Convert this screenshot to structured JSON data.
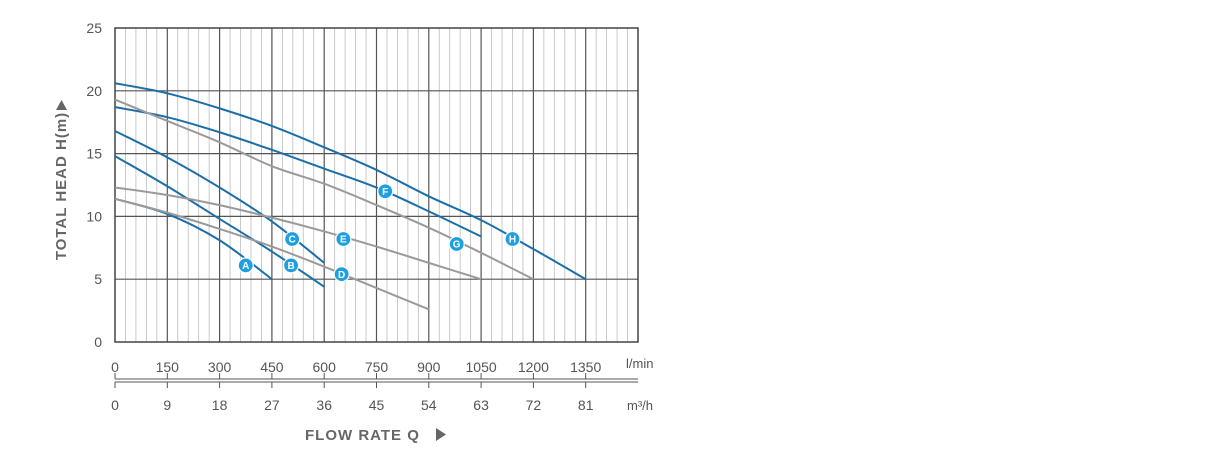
{
  "chart_data": {
    "type": "line",
    "ylabel": "TOTAL HEAD H(m)",
    "xlabel": "FLOW RATE Q",
    "x_unit_primary": "l/min",
    "x_unit_secondary": "m³/h",
    "xlim": [
      0,
      1500
    ],
    "ylim": [
      0,
      25
    ],
    "grid": true,
    "y_ticks": [
      "0",
      "5",
      "10",
      "15",
      "20",
      "25"
    ],
    "x_ticks_primary": [
      "0",
      "150",
      "300",
      "450",
      "600",
      "750",
      "900",
      "1050",
      "1200",
      "1350"
    ],
    "x_ticks_secondary": [
      "0",
      "9",
      "18",
      "27",
      "36",
      "45",
      "54",
      "63",
      "72",
      "81"
    ],
    "colors": {
      "blue": "#1a6fa8",
      "gray": "#9a9a9a",
      "badge": "#1e9fe0",
      "grid": "#555555",
      "minor_grid": "#bdbdbd"
    },
    "series": [
      {
        "name": "A",
        "color": "blue",
        "x": [
          0,
          150,
          300,
          450
        ],
        "y": [
          11.4,
          10.2,
          8.1,
          5.0
        ],
        "label_at": [
          375,
          6.1
        ]
      },
      {
        "name": "B",
        "color": "blue",
        "x": [
          0,
          150,
          300,
          450,
          600
        ],
        "y": [
          14.8,
          12.4,
          9.8,
          7.2,
          4.4
        ],
        "label_at": [
          505,
          6.1
        ]
      },
      {
        "name": "C",
        "color": "blue",
        "x": [
          0,
          150,
          300,
          450,
          600
        ],
        "y": [
          16.8,
          14.7,
          12.3,
          9.6,
          6.3
        ],
        "label_at": [
          508,
          8.2
        ]
      },
      {
        "name": "D",
        "color": "gray",
        "x": [
          0,
          150,
          300,
          450,
          600,
          750,
          900
        ],
        "y": [
          11.4,
          10.3,
          9.0,
          7.6,
          6.0,
          4.3,
          2.6
        ],
        "label_at": [
          650,
          5.4
        ]
      },
      {
        "name": "E",
        "color": "gray",
        "x": [
          0,
          150,
          300,
          450,
          600,
          750,
          900,
          1050
        ],
        "y": [
          12.3,
          11.7,
          10.9,
          9.9,
          8.8,
          7.6,
          6.3,
          5.0
        ],
        "label_at": [
          655,
          8.2
        ]
      },
      {
        "name": "F",
        "color": "blue",
        "x": [
          0,
          150,
          300,
          450,
          600,
          750,
          900,
          1050
        ],
        "y": [
          18.7,
          17.9,
          16.7,
          15.3,
          13.8,
          12.3,
          10.4,
          8.4
        ],
        "label_at": [
          775,
          12.0
        ]
      },
      {
        "name": "G",
        "color": "gray",
        "x": [
          0,
          150,
          300,
          450,
          600,
          750,
          900,
          1050,
          1200
        ],
        "y": [
          19.3,
          17.6,
          15.9,
          14.0,
          12.6,
          10.9,
          9.1,
          7.1,
          5.0
        ],
        "label_at": [
          980,
          7.8
        ]
      },
      {
        "name": "H",
        "color": "blue",
        "x": [
          0,
          150,
          300,
          450,
          600,
          750,
          900,
          1050,
          1200,
          1350
        ],
        "y": [
          20.6,
          19.8,
          18.6,
          17.2,
          15.5,
          13.7,
          11.6,
          9.7,
          7.4,
          5.0
        ],
        "label_at": [
          1140,
          8.2
        ]
      }
    ]
  }
}
